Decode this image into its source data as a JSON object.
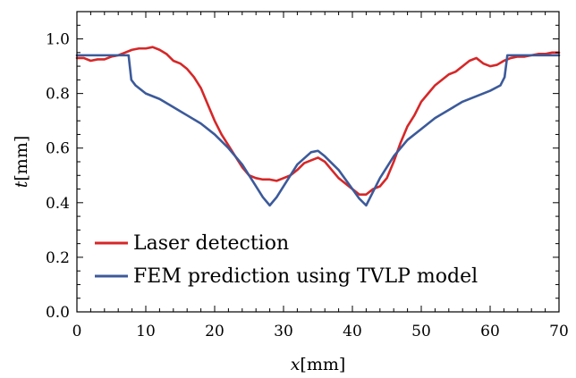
{
  "chart_data": {
    "type": "line",
    "xlabel_var": "x",
    "xlabel_unit": "[mm]",
    "ylabel_var": "t",
    "ylabel_unit": "[mm]",
    "xlim": [
      0,
      70
    ],
    "ylim": [
      0,
      1.1
    ],
    "x_ticks": [
      0,
      10,
      20,
      30,
      40,
      50,
      60,
      70
    ],
    "x_tick_labels": [
      "0",
      "10",
      "20",
      "30",
      "40",
      "50",
      "60",
      "70"
    ],
    "y_ticks": [
      0,
      0.2,
      0.4,
      0.6,
      0.8,
      1.0
    ],
    "y_tick_labels": [
      "0.0",
      "0.2",
      "0.4",
      "0.6",
      "0.8",
      "1.0"
    ],
    "grid": false,
    "legend_position": "bottom-left",
    "series": [
      {
        "name": "Laser detection",
        "color": "#d62728",
        "x": [
          0,
          1,
          2,
          3,
          4,
          5,
          6,
          7,
          8,
          9,
          10,
          11,
          12,
          13,
          14,
          15,
          16,
          17,
          18,
          19,
          20,
          21,
          22,
          23,
          24,
          25,
          26,
          27,
          28,
          29,
          30,
          31,
          32,
          33,
          34,
          35,
          36,
          37,
          38,
          39,
          40,
          41,
          42,
          43,
          44,
          45,
          46,
          47,
          48,
          49,
          50,
          51,
          52,
          53,
          54,
          55,
          56,
          57,
          58,
          59,
          60,
          61,
          62,
          63,
          64,
          65,
          66,
          67,
          68,
          69,
          70
        ],
        "y": [
          0.93,
          0.93,
          0.92,
          0.925,
          0.925,
          0.935,
          0.94,
          0.95,
          0.96,
          0.965,
          0.965,
          0.97,
          0.96,
          0.945,
          0.92,
          0.91,
          0.89,
          0.86,
          0.82,
          0.76,
          0.7,
          0.65,
          0.61,
          0.57,
          0.53,
          0.5,
          0.49,
          0.485,
          0.485,
          0.48,
          0.49,
          0.5,
          0.52,
          0.545,
          0.555,
          0.565,
          0.55,
          0.52,
          0.49,
          0.47,
          0.45,
          0.43,
          0.43,
          0.45,
          0.46,
          0.49,
          0.55,
          0.62,
          0.68,
          0.72,
          0.77,
          0.8,
          0.83,
          0.85,
          0.87,
          0.88,
          0.9,
          0.92,
          0.93,
          0.91,
          0.9,
          0.905,
          0.92,
          0.93,
          0.935,
          0.935,
          0.94,
          0.945,
          0.945,
          0.95,
          0.95
        ]
      },
      {
        "name": "FEM prediction using TVLP model",
        "color": "#3c5a9a",
        "x": [
          0,
          7.5,
          7.9,
          8.5,
          10,
          12,
          14,
          16,
          18,
          20,
          22,
          24,
          26,
          27,
          28,
          29,
          30,
          32,
          34,
          35,
          36,
          38,
          40,
          41,
          42,
          43,
          44,
          46,
          48,
          50,
          52,
          54,
          56,
          58,
          60,
          61.5,
          62.1,
          62.5,
          70
        ],
        "y": [
          0.94,
          0.94,
          0.85,
          0.83,
          0.8,
          0.78,
          0.75,
          0.72,
          0.69,
          0.65,
          0.6,
          0.54,
          0.46,
          0.42,
          0.39,
          0.42,
          0.46,
          0.54,
          0.585,
          0.59,
          0.57,
          0.52,
          0.45,
          0.415,
          0.39,
          0.44,
          0.49,
          0.57,
          0.63,
          0.67,
          0.71,
          0.74,
          0.77,
          0.79,
          0.81,
          0.83,
          0.86,
          0.94,
          0.94
        ]
      }
    ]
  }
}
